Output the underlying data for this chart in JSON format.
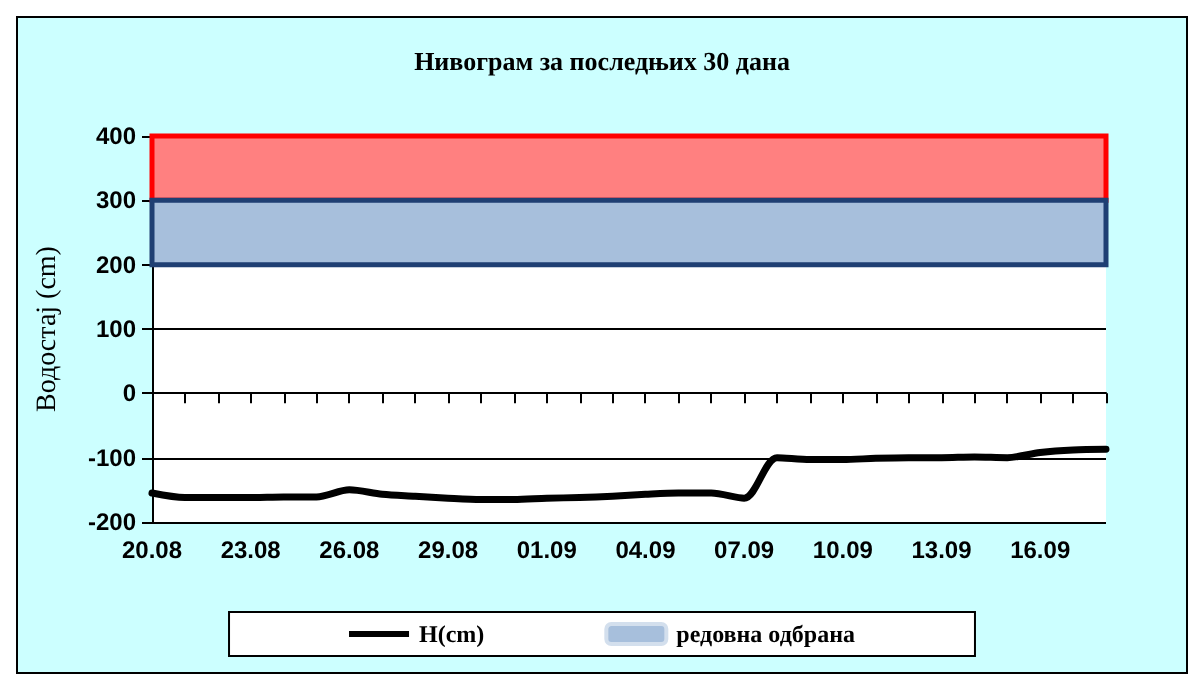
{
  "chart_data": {
    "type": "line",
    "title": "Нивограм за последњих 30 дана",
    "ylabel": "Водостај (cm)",
    "categories": [
      "20.08",
      null,
      null,
      "23.08",
      null,
      null,
      "26.08",
      null,
      null,
      "29.08",
      null,
      null,
      "01.09",
      null,
      null,
      "04.09",
      null,
      null,
      "07.09",
      null,
      null,
      "10.09",
      null,
      null,
      "13.09",
      null,
      null,
      "16.09",
      null,
      null
    ],
    "series": [
      {
        "name": "H(cm)",
        "color": "#000000",
        "values": [
          -155,
          -162,
          -162,
          -162,
          -161,
          -161,
          -150,
          -157,
          -160,
          -163,
          -165,
          -165,
          -163,
          -162,
          -160,
          -157,
          -155,
          -155,
          -163,
          -100,
          -103,
          -103,
          -101,
          -100,
          -100,
          -99,
          -100,
          -92,
          -88,
          -87
        ]
      }
    ],
    "bands": [
      {
        "axis": "y",
        "from": 300,
        "to": 400,
        "color": "#ff8080"
      },
      {
        "axis": "y",
        "from": 200,
        "to": 300,
        "color": "#a7bfdc",
        "label": "редовна одбрана"
      }
    ],
    "ylim": [
      -200,
      400
    ],
    "yticks": [
      -200,
      -100,
      0,
      100,
      200,
      300,
      400
    ],
    "grid": "y",
    "legend": "bottom",
    "marker": "none",
    "line_style": "solid"
  }
}
